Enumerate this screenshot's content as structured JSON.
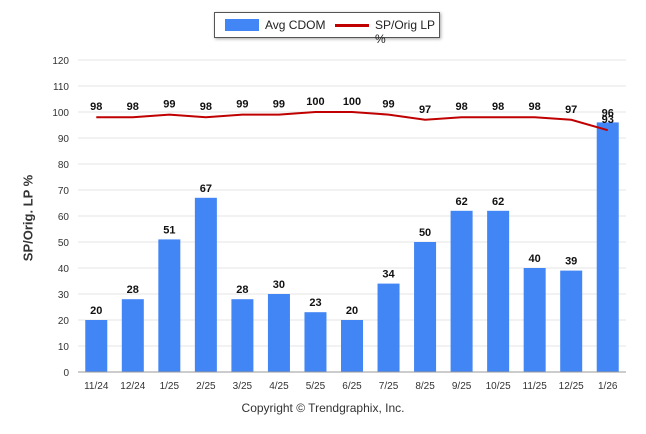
{
  "legend": {
    "bar_label": "Avg CDOM",
    "line_label": "SP/Orig LP %"
  },
  "copyright": "Copyright © Trendgraphix, Inc.",
  "colors": {
    "bar": "#4285f4",
    "line": "#c00000",
    "grid": "#e6e6e6"
  },
  "chart_data": {
    "type": "bar",
    "categories": [
      "11/24",
      "12/24",
      "1/25",
      "2/25",
      "3/25",
      "4/25",
      "5/25",
      "6/25",
      "7/25",
      "8/25",
      "9/25",
      "10/25",
      "11/25",
      "12/25",
      "1/26"
    ],
    "series": [
      {
        "name": "Avg CDOM",
        "type": "bar",
        "values": [
          20,
          28,
          51,
          67,
          28,
          30,
          23,
          20,
          34,
          50,
          62,
          62,
          40,
          39,
          96
        ]
      },
      {
        "name": "SP/Orig LP %",
        "type": "line",
        "values": [
          98,
          98,
          99,
          98,
          99,
          99,
          100,
          100,
          99,
          97,
          98,
          98,
          98,
          97,
          93
        ]
      }
    ],
    "ylabel": "SP/Orig. LP %",
    "xlabel": "",
    "ylim": [
      0,
      120
    ],
    "yticks": [
      0,
      10,
      20,
      30,
      40,
      50,
      60,
      70,
      80,
      90,
      100,
      110,
      120
    ],
    "grid": true,
    "legend_position": "top-center"
  }
}
